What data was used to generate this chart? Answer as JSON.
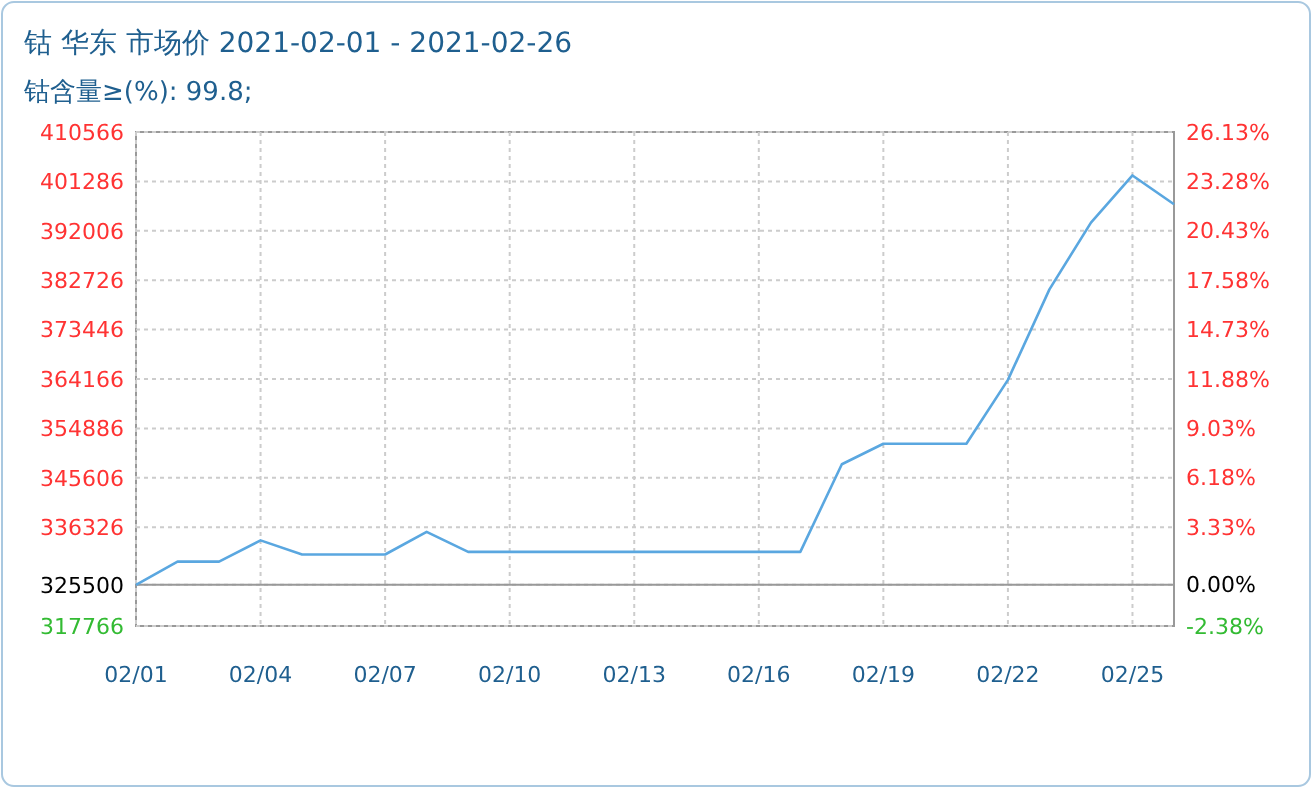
{
  "chart_data": {
    "type": "line",
    "title": "钴 华东 市场价 2021-02-01 - 2021-02-26",
    "subtitle": "钴含量≥(%): 99.8;",
    "x": [
      "2021-02-01",
      "2021-02-02",
      "2021-02-03",
      "2021-02-04",
      "2021-02-05",
      "2021-02-06",
      "2021-02-07",
      "2021-02-08",
      "2021-02-09",
      "2021-02-10",
      "2021-02-11",
      "2021-02-12",
      "2021-02-13",
      "2021-02-14",
      "2021-02-15",
      "2021-02-16",
      "2021-02-17",
      "2021-02-18",
      "2021-02-19",
      "2021-02-20",
      "2021-02-21",
      "2021-02-22",
      "2021-02-23",
      "2021-02-24",
      "2021-02-25",
      "2021-02-26"
    ],
    "series": [
      {
        "color": "#5aa7e0",
        "values": [
          325500,
          329850,
          329850,
          333850,
          331200,
          331200,
          331200,
          335450,
          331700,
          331700,
          331700,
          331700,
          331700,
          331700,
          331700,
          331700,
          331700,
          348150,
          352000,
          352000,
          352000,
          364000,
          381000,
          393550,
          402400,
          397000
        ]
      }
    ],
    "xlim": [
      "2021-02-01",
      "2021-02-26"
    ],
    "xticks": [
      {
        "value": "2021-02-01",
        "label": "02/01"
      },
      {
        "value": "2021-02-04",
        "label": "02/04"
      },
      {
        "value": "2021-02-07",
        "label": "02/07"
      },
      {
        "value": "2021-02-10",
        "label": "02/10"
      },
      {
        "value": "2021-02-13",
        "label": "02/13"
      },
      {
        "value": "2021-02-16",
        "label": "02/16"
      },
      {
        "value": "2021-02-19",
        "label": "02/19"
      },
      {
        "value": "2021-02-22",
        "label": "02/22"
      },
      {
        "value": "2021-02-25",
        "label": "02/25"
      }
    ],
    "ylim": [
      317766,
      410566
    ],
    "yticks": [
      317766,
      325500,
      336326,
      345606,
      354886,
      364166,
      373446,
      382726,
      392006,
      401286,
      410566
    ],
    "y2lim": [
      -2.38,
      26.13
    ],
    "y2ticks": [
      {
        "value": -2.38,
        "label": "-2.38%"
      },
      {
        "value": 0,
        "label": "0.00%"
      },
      {
        "value": 3.33,
        "label": "3.33%"
      },
      {
        "value": 6.18,
        "label": "6.18%"
      },
      {
        "value": 9.03,
        "label": "9.03%"
      },
      {
        "value": 11.88,
        "label": "11.88%"
      },
      {
        "value": 14.73,
        "label": "14.73%"
      },
      {
        "value": 17.58,
        "label": "17.58%"
      },
      {
        "value": 20.43,
        "label": "20.43%"
      },
      {
        "value": 23.28,
        "label": "23.28%"
      },
      {
        "value": 26.13,
        "label": "26.13%"
      }
    ],
    "ref_lines": [
      {
        "axis": "y",
        "value": 325500,
        "color": "#999999"
      }
    ],
    "grid": true,
    "line_style": "solid",
    "marker": "none"
  }
}
